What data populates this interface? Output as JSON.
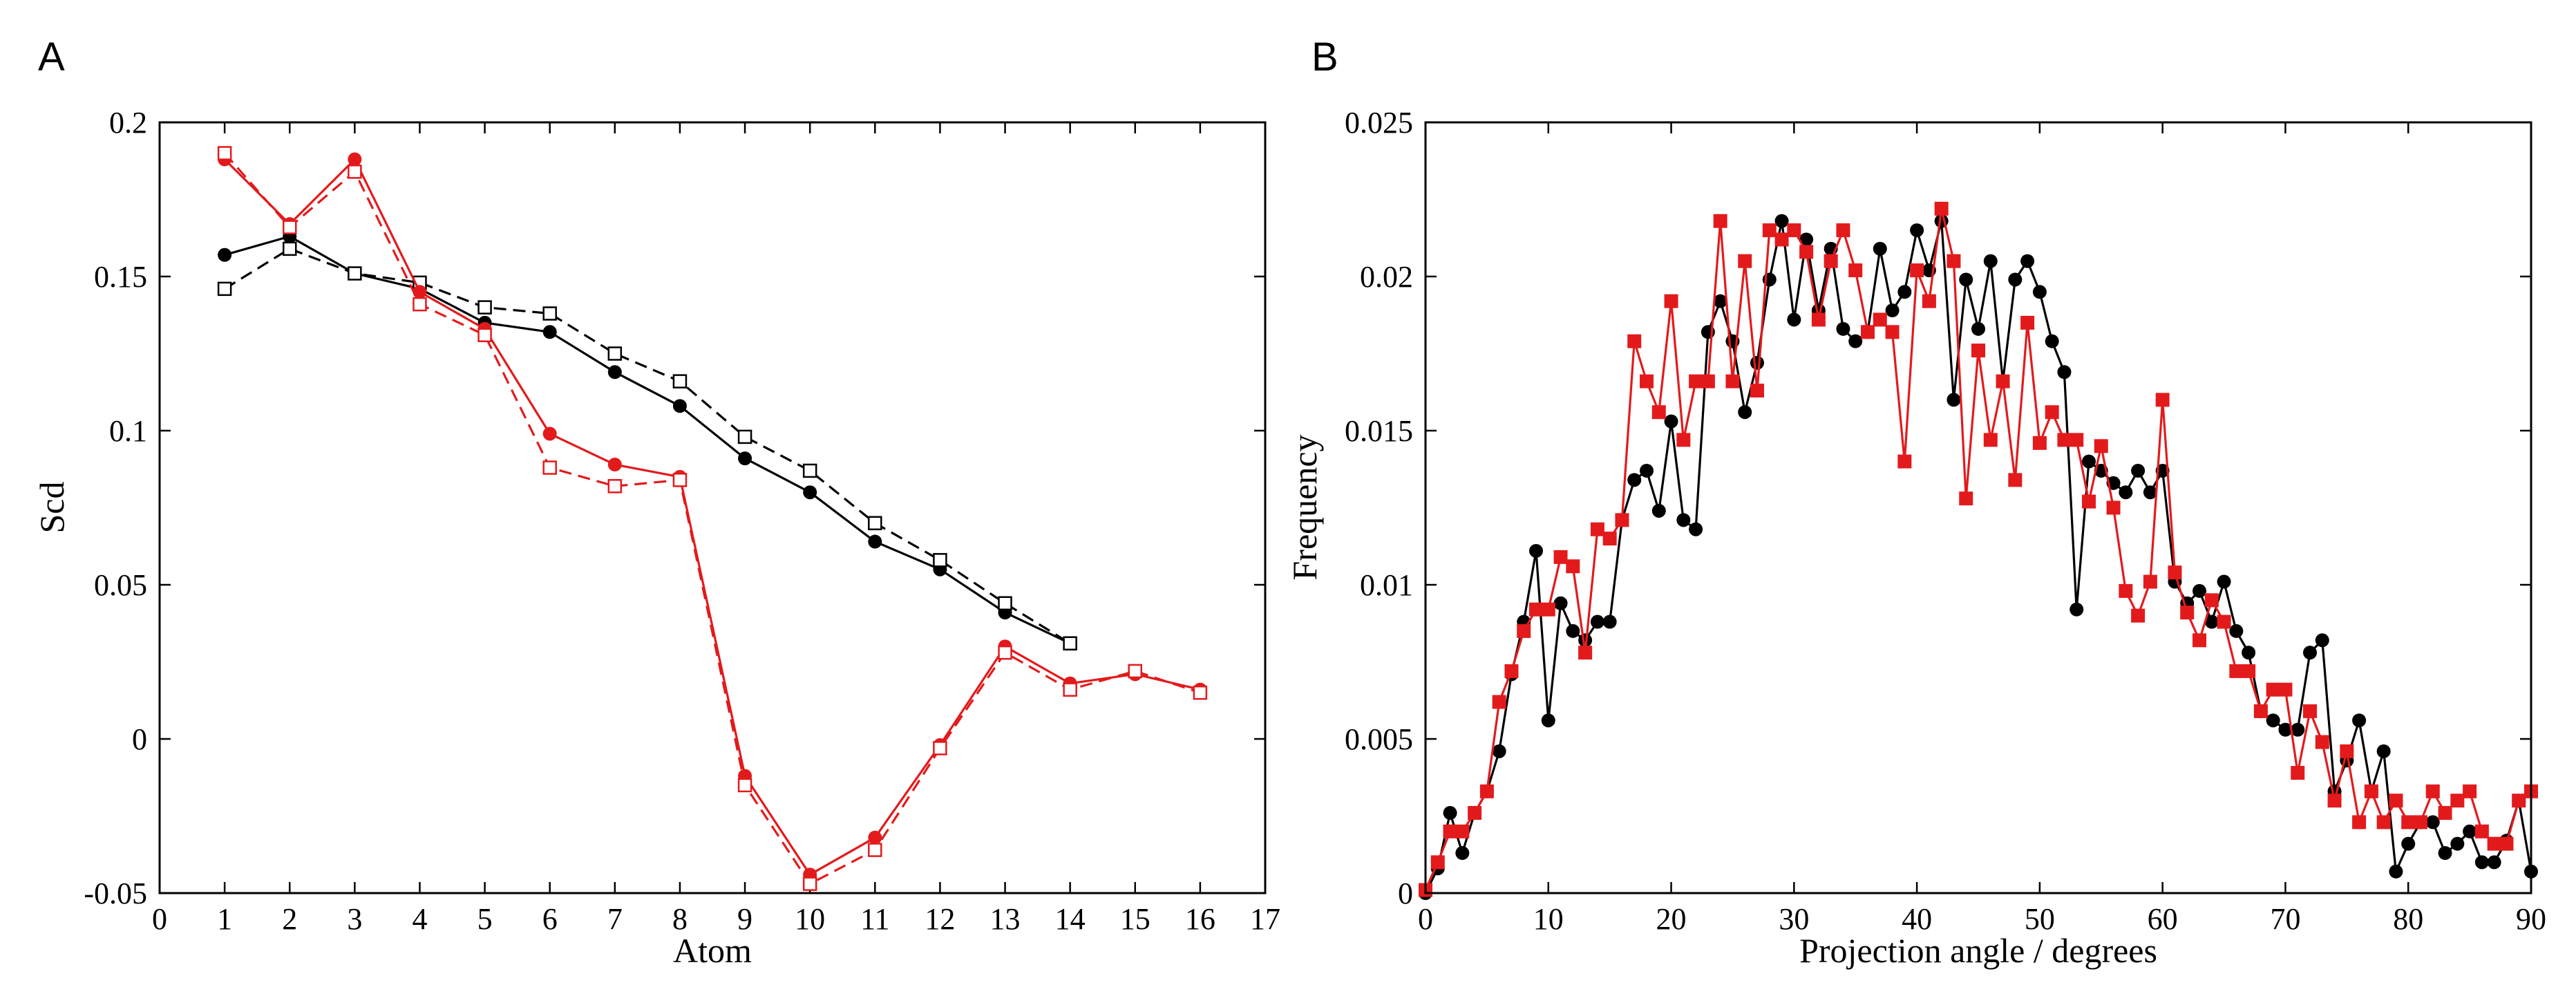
{
  "panels": [
    "A",
    "B"
  ],
  "chart_data": [
    {
      "type": "line",
      "panel": "A",
      "xlabel": "Atom",
      "ylabel": "Scd",
      "xlim": [
        0,
        17
      ],
      "ylim": [
        -0.05,
        0.2
      ],
      "xticks": [
        0,
        1,
        2,
        3,
        4,
        5,
        6,
        7,
        8,
        9,
        10,
        11,
        12,
        13,
        14,
        15,
        16,
        17
      ],
      "yticks": [
        -0.05,
        0,
        0.05,
        0.1,
        0.15,
        0.2
      ],
      "ytick_labels": [
        "-0.05",
        "0",
        "0.05",
        "0.1",
        "0.15",
        "0.2"
      ],
      "series": [
        {
          "name": "black-filled",
          "color": "#000000",
          "marker": "circle-filled",
          "dashed": false,
          "x": [
            1,
            2,
            3,
            4,
            5,
            6,
            7,
            8,
            9,
            10,
            11,
            12,
            13,
            14
          ],
          "y": [
            0.157,
            0.163,
            0.151,
            0.146,
            0.135,
            0.132,
            0.119,
            0.108,
            0.091,
            0.08,
            0.064,
            0.055,
            0.041,
            0.031
          ]
        },
        {
          "name": "black-open",
          "color": "#000000",
          "marker": "square-open",
          "dashed": true,
          "x": [
            1,
            2,
            3,
            4,
            5,
            6,
            7,
            8,
            9,
            10,
            11,
            12,
            13,
            14
          ],
          "y": [
            0.146,
            0.159,
            0.151,
            0.148,
            0.14,
            0.138,
            0.125,
            0.116,
            0.098,
            0.087,
            0.07,
            0.058,
            0.044,
            0.031
          ]
        },
        {
          "name": "red-filled",
          "color": "#e31a1c",
          "marker": "circle-filled",
          "dashed": false,
          "x": [
            1,
            2,
            3,
            4,
            5,
            6,
            7,
            8,
            9,
            10,
            11,
            12,
            13,
            14,
            15,
            16
          ],
          "y": [
            0.188,
            0.167,
            0.188,
            0.145,
            0.133,
            0.099,
            0.089,
            0.085,
            -0.012,
            -0.044,
            -0.032,
            -0.002,
            0.03,
            0.018,
            0.021,
            0.016
          ]
        },
        {
          "name": "red-open",
          "color": "#e31a1c",
          "marker": "square-open",
          "dashed": true,
          "x": [
            1,
            2,
            3,
            4,
            5,
            6,
            7,
            8,
            9,
            10,
            11,
            12,
            13,
            14,
            15,
            16
          ],
          "y": [
            0.19,
            0.166,
            0.184,
            0.141,
            0.131,
            0.088,
            0.082,
            0.084,
            -0.015,
            -0.047,
            -0.036,
            -0.003,
            0.028,
            0.016,
            0.022,
            0.015
          ]
        }
      ]
    },
    {
      "type": "line",
      "panel": "B",
      "xlabel": "Projection angle / degrees",
      "ylabel": "Frequency",
      "xlim": [
        0,
        90
      ],
      "ylim": [
        0,
        0.025
      ],
      "xticks": [
        0,
        10,
        20,
        30,
        40,
        50,
        60,
        70,
        80,
        90
      ],
      "yticks": [
        0,
        0.005,
        0.01,
        0.015,
        0.02,
        0.025
      ],
      "ytick_labels": [
        "0",
        "0.005",
        "0.01",
        "0.015",
        "0.02",
        "0.025"
      ],
      "series": [
        {
          "name": "black",
          "color": "#000000",
          "marker": "circle-filled",
          "y": [
            0.0,
            0.0008,
            0.0026,
            0.0013,
            0.0026,
            0.0033,
            0.0046,
            0.0071,
            0.0088,
            0.0111,
            0.0056,
            0.0094,
            0.0085,
            0.0082,
            0.0088,
            0.0088,
            0.0121,
            0.0134,
            0.0137,
            0.0124,
            0.0153,
            0.0121,
            0.0118,
            0.0182,
            0.0192,
            0.0179,
            0.0156,
            0.0172,
            0.0199,
            0.0218,
            0.0186,
            0.0212,
            0.0189,
            0.0209,
            0.0183,
            0.0179,
            0.0182,
            0.0209,
            0.0189,
            0.0195,
            0.0215,
            0.0202,
            0.0218,
            0.016,
            0.0199,
            0.0183,
            0.0205,
            0.0166,
            0.0199,
            0.0205,
            0.0195,
            0.0179,
            0.0169,
            0.0092,
            0.014,
            0.0137,
            0.0133,
            0.013,
            0.0137,
            0.013,
            0.0137,
            0.0101,
            0.0094,
            0.0098,
            0.0088,
            0.0101,
            0.0085,
            0.0078,
            0.0059,
            0.0056,
            0.0053,
            0.0053,
            0.0078,
            0.0082,
            0.0033,
            0.0043,
            0.0056,
            0.0033,
            0.0046,
            0.0007,
            0.0016,
            0.0023,
            0.0023,
            0.0013,
            0.0016,
            0.002,
            0.001,
            0.001,
            0.0017,
            0.003,
            0.0007
          ]
        },
        {
          "name": "red",
          "color": "#e31a1c",
          "marker": "square-filled",
          "y": [
            0.0001,
            0.001,
            0.002,
            0.002,
            0.0026,
            0.0033,
            0.0062,
            0.0072,
            0.0085,
            0.0092,
            0.0092,
            0.0109,
            0.0106,
            0.0078,
            0.0118,
            0.0115,
            0.0121,
            0.0179,
            0.0166,
            0.0156,
            0.0192,
            0.0147,
            0.0166,
            0.0166,
            0.0218,
            0.0166,
            0.0205,
            0.0163,
            0.0215,
            0.0212,
            0.0215,
            0.0208,
            0.0186,
            0.0205,
            0.0215,
            0.0202,
            0.0182,
            0.0186,
            0.0182,
            0.014,
            0.0202,
            0.0192,
            0.0222,
            0.0205,
            0.0128,
            0.0176,
            0.0147,
            0.0166,
            0.0134,
            0.0185,
            0.0146,
            0.0156,
            0.0147,
            0.0147,
            0.0127,
            0.0145,
            0.0125,
            0.0098,
            0.009,
            0.0101,
            0.016,
            0.0104,
            0.0091,
            0.0082,
            0.0095,
            0.0088,
            0.0072,
            0.0072,
            0.0059,
            0.0066,
            0.0066,
            0.0039,
            0.0059,
            0.0049,
            0.003,
            0.0046,
            0.0023,
            0.0033,
            0.0023,
            0.003,
            0.0023,
            0.0023,
            0.0033,
            0.0026,
            0.003,
            0.0033,
            0.002,
            0.0016,
            0.0016,
            0.003,
            0.0033
          ]
        }
      ]
    }
  ]
}
